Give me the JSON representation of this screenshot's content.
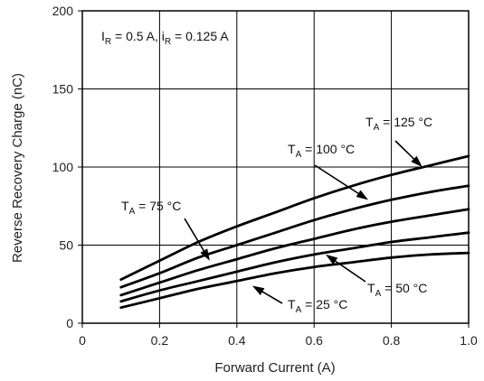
{
  "chart_data": {
    "type": "line",
    "title": "",
    "xlabel": "Forward Current (A)",
    "ylabel": "Reverse Recovery Charge (nC)",
    "xlim": [
      0,
      1.0
    ],
    "ylim": [
      0,
      200
    ],
    "xticks": [
      "0",
      "0.2",
      "0.4",
      "0.6",
      "0.8",
      "1.0"
    ],
    "yticks": [
      "0",
      "50",
      "100",
      "150",
      "200"
    ],
    "grid": true,
    "conditions": {
      "I_main": "I",
      "I_sub": "R",
      "I_rest": " = 0.5 A, ",
      "i_main": "i",
      "i_sub": "R",
      "i_rest": " = 0.125 A"
    },
    "series": [
      {
        "name": "T_A = 125 °C",
        "label_main": "T",
        "label_sub": "A",
        "label_rest": " = 125 °C",
        "x": [
          0.1,
          0.2,
          0.3,
          0.4,
          0.5,
          0.6,
          0.7,
          0.8,
          0.9,
          1.0
        ],
        "values": [
          28,
          40,
          52,
          62,
          71,
          80,
          88,
          95,
          101,
          107
        ]
      },
      {
        "name": "T_A = 100 °C",
        "label_main": "T",
        "label_sub": "A",
        "label_rest": " = 100 °C",
        "x": [
          0.1,
          0.2,
          0.3,
          0.4,
          0.5,
          0.6,
          0.7,
          0.8,
          0.9,
          1.0
        ],
        "values": [
          23,
          32,
          42,
          50,
          58,
          66,
          73,
          79,
          84,
          88
        ]
      },
      {
        "name": "T_A = 75 °C",
        "label_main": "T",
        "label_sub": "A",
        "label_rest": " = 75 °C",
        "x": [
          0.1,
          0.2,
          0.3,
          0.4,
          0.5,
          0.6,
          0.7,
          0.8,
          0.9,
          1.0
        ],
        "values": [
          18,
          26,
          34,
          41,
          48,
          54,
          60,
          65,
          69,
          73
        ]
      },
      {
        "name": "T_A = 50 °C",
        "label_main": "T",
        "label_sub": "A",
        "label_rest": " = 50 °C",
        "x": [
          0.1,
          0.2,
          0.3,
          0.4,
          0.5,
          0.6,
          0.7,
          0.8,
          0.9,
          1.0
        ],
        "values": [
          14,
          21,
          27,
          33,
          39,
          44,
          48,
          52,
          55,
          58
        ]
      },
      {
        "name": "T_A = 25 °C",
        "label_main": "T",
        "label_sub": "A",
        "label_rest": " = 25 °C",
        "x": [
          0.1,
          0.2,
          0.3,
          0.4,
          0.5,
          0.6,
          0.7,
          0.8,
          0.9,
          1.0
        ],
        "values": [
          10,
          16,
          22,
          27,
          32,
          36,
          39,
          42,
          44,
          45
        ]
      }
    ]
  }
}
